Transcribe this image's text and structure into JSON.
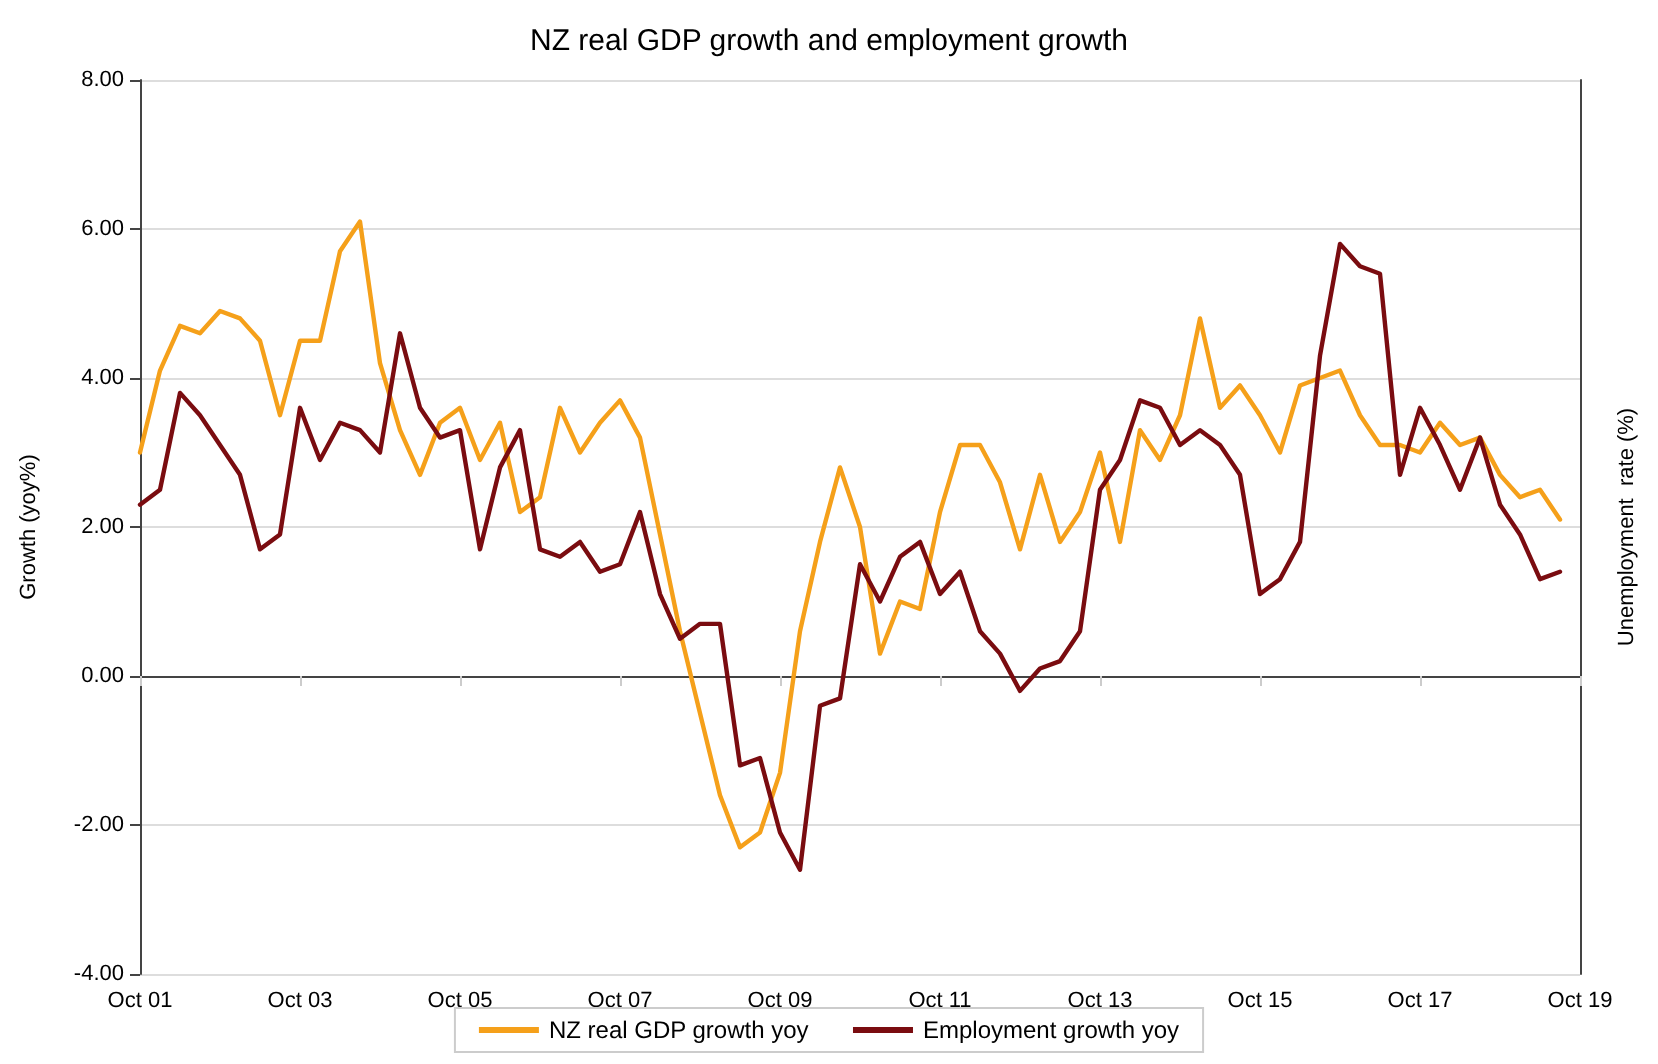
{
  "chart_data": {
    "type": "line",
    "title": "NZ real GDP growth and employment growth",
    "ylabel": "Growth (yoy%)",
    "y2label": "Unemployment  rate (%)",
    "categories": [
      "Oct 01",
      null,
      null,
      null,
      null,
      null,
      null,
      null,
      "Oct 03",
      null,
      null,
      null,
      null,
      null,
      null,
      null,
      "Oct 05",
      null,
      null,
      null,
      null,
      null,
      null,
      null,
      "Oct 07",
      null,
      null,
      null,
      null,
      null,
      null,
      null,
      "Oct 09",
      null,
      null,
      null,
      null,
      null,
      null,
      null,
      "Oct 11",
      null,
      null,
      null,
      null,
      null,
      null,
      null,
      "Oct 13",
      null,
      null,
      null,
      null,
      null,
      null,
      null,
      "Oct 15",
      null,
      null,
      null,
      null,
      null,
      null,
      null,
      "Oct 17",
      null,
      null,
      null,
      null,
      null,
      null,
      null,
      "Oct 19"
    ],
    "series": [
      {
        "name": "NZ real GDP growth yoy",
        "color": "#f5a01a",
        "values": [
          3.0,
          4.1,
          4.7,
          4.6,
          4.9,
          4.8,
          4.5,
          3.5,
          4.5,
          4.5,
          5.7,
          6.1,
          4.2,
          3.3,
          2.7,
          3.4,
          3.6,
          2.9,
          3.4,
          2.2,
          2.4,
          3.6,
          3.0,
          3.4,
          3.7,
          3.2,
          1.9,
          0.6,
          -0.5,
          -1.6,
          -2.3,
          -2.1,
          -1.3,
          0.6,
          1.8,
          2.8,
          2.0,
          0.3,
          1.0,
          0.9,
          2.2,
          3.1,
          3.1,
          2.6,
          1.7,
          2.7,
          1.8,
          2.2,
          3.0,
          1.8,
          3.3,
          2.9,
          3.5,
          4.8,
          3.6,
          3.9,
          3.5,
          3.0,
          3.9,
          4.0,
          4.1,
          3.5,
          3.1,
          3.1,
          3.0,
          3.4,
          3.1,
          3.2,
          2.7,
          2.4,
          2.5,
          2.1,
          null
        ]
      },
      {
        "name": "Employment growth yoy",
        "color": "#7a0c10",
        "values": [
          2.3,
          2.5,
          3.8,
          3.5,
          3.1,
          2.7,
          1.7,
          1.9,
          3.6,
          2.9,
          3.4,
          3.3,
          3.0,
          4.6,
          3.6,
          3.2,
          3.3,
          1.7,
          2.8,
          3.3,
          1.7,
          1.6,
          1.8,
          1.4,
          1.5,
          2.2,
          1.1,
          0.5,
          0.7,
          0.7,
          -1.2,
          -1.1,
          -2.1,
          -2.6,
          -0.4,
          -0.3,
          1.5,
          1.0,
          1.6,
          1.8,
          1.1,
          1.4,
          0.6,
          0.3,
          -0.2,
          0.1,
          0.2,
          0.6,
          2.5,
          2.9,
          3.7,
          3.6,
          3.1,
          3.3,
          3.1,
          2.7,
          1.1,
          1.3,
          1.8,
          4.3,
          5.8,
          5.5,
          5.4,
          2.7,
          3.6,
          3.1,
          2.5,
          3.2,
          2.3,
          1.9,
          1.3,
          1.4,
          null
        ]
      }
    ],
    "ylim": [
      -4,
      8
    ],
    "yticks": [
      {
        "value": -4,
        "label": "-4.00"
      },
      {
        "value": -2,
        "label": "-2.00"
      },
      {
        "value": 0,
        "label": "0.00"
      },
      {
        "value": 2,
        "label": "2.00"
      },
      {
        "value": 4,
        "label": "4.00"
      },
      {
        "value": 6,
        "label": "6.00"
      },
      {
        "value": 8,
        "label": "8.00"
      }
    ],
    "grid": "y",
    "legend": "bottom",
    "marker": "none",
    "line_style": "solid"
  }
}
